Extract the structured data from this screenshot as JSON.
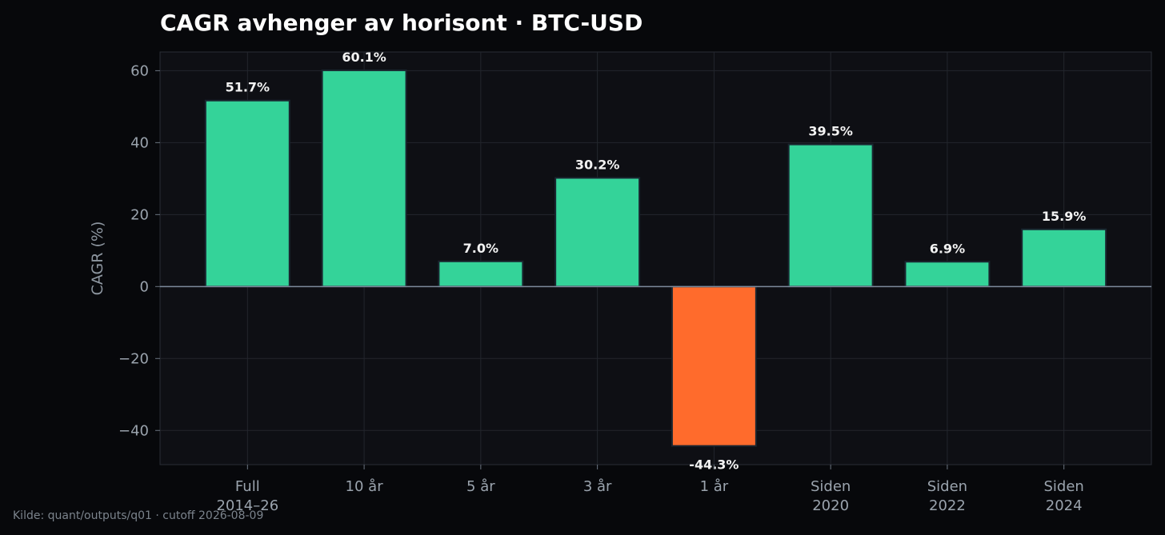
{
  "chart_data": {
    "type": "bar",
    "title": "CAGR avhenger av horisont · BTC-USD",
    "xlabel": "",
    "ylabel": "CAGR (%)",
    "categories": [
      [
        "Full",
        "2014–26"
      ],
      [
        "10 år"
      ],
      [
        "5 år"
      ],
      [
        "3 år"
      ],
      [
        "1 år"
      ],
      [
        "Siden",
        "2020"
      ],
      [
        "Siden",
        "2022"
      ],
      [
        "Siden",
        "2024"
      ]
    ],
    "values": [
      51.7,
      60.1,
      7.0,
      30.2,
      -44.3,
      39.5,
      6.9,
      15.9
    ],
    "value_labels": [
      "51.7%",
      "60.1%",
      "7.0%",
      "30.2%",
      "-44.3%",
      "39.5%",
      "6.9%",
      "15.9%"
    ],
    "ylim": [
      -49.5,
      65.2
    ],
    "yticks": [
      -40,
      -20,
      0,
      20,
      40,
      60
    ],
    "ytick_labels": [
      "−40",
      "−20",
      "0",
      "20",
      "40",
      "60"
    ],
    "grid": true,
    "colors": {
      "positive": "#34d399",
      "negative": "#ff6b2c",
      "plot_bg": "#0e0f14",
      "figure_bg": "#07080b",
      "zero_line": "#7d8a9c"
    }
  },
  "footer": {
    "source": "Kilde: quant/outputs/q01 · cutoff 2026-08-09"
  }
}
